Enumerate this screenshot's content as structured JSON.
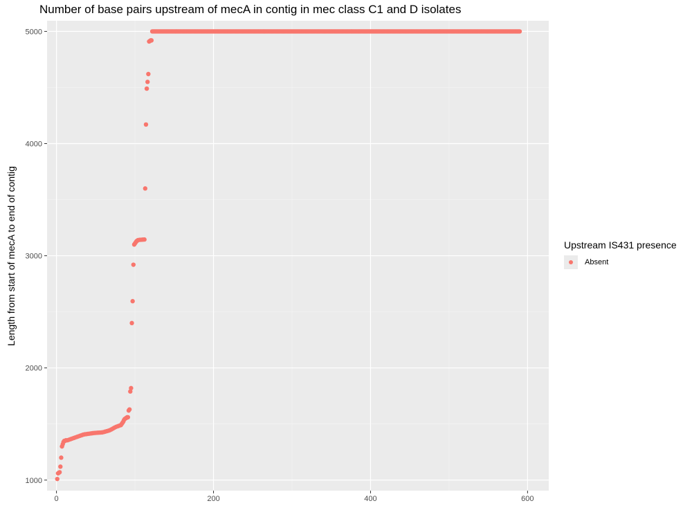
{
  "colors": {
    "series": "#f8766d",
    "panel": "#ebebeb",
    "grid_major": "#ffffff",
    "grid_minor": "#f5f5f5"
  },
  "chart_data": {
    "type": "scatter",
    "title": "Number of base pairs upstream of mecA in contig in mec class C1 and D isolates",
    "xlabel": "",
    "ylabel": "Length from start of mecA to end of contig",
    "xlim": [
      -12,
      627
    ],
    "ylim": [
      906,
      5095
    ],
    "xticks": [
      0,
      200,
      400,
      600
    ],
    "yticks": [
      1000,
      2000,
      3000,
      4000,
      5000
    ],
    "grid": true,
    "legend": {
      "title": "Upstream IS431 presence",
      "position": "right",
      "entries": [
        "Absent"
      ]
    },
    "series": [
      {
        "name": "Absent",
        "points": [
          [
            1,
            1010
          ],
          [
            2,
            1060
          ],
          [
            3,
            1065
          ],
          [
            4,
            1070
          ],
          [
            5,
            1120
          ],
          [
            6,
            1200
          ],
          [
            7,
            1300
          ],
          [
            8,
            1320
          ],
          [
            9,
            1340
          ],
          [
            10,
            1350
          ],
          [
            11,
            1350
          ],
          [
            12,
            1355
          ],
          [
            14,
            1355
          ],
          [
            16,
            1360
          ],
          [
            18,
            1365
          ],
          [
            20,
            1370
          ],
          [
            22,
            1375
          ],
          [
            24,
            1380
          ],
          [
            26,
            1385
          ],
          [
            28,
            1390
          ],
          [
            30,
            1395
          ],
          [
            32,
            1400
          ],
          [
            34,
            1405
          ],
          [
            36,
            1408
          ],
          [
            38,
            1410
          ],
          [
            40,
            1412
          ],
          [
            42,
            1414
          ],
          [
            44,
            1416
          ],
          [
            46,
            1418
          ],
          [
            48,
            1420
          ],
          [
            50,
            1421
          ],
          [
            52,
            1422
          ],
          [
            54,
            1423
          ],
          [
            56,
            1424
          ],
          [
            58,
            1425
          ],
          [
            60,
            1428
          ],
          [
            62,
            1432
          ],
          [
            64,
            1436
          ],
          [
            66,
            1440
          ],
          [
            68,
            1445
          ],
          [
            70,
            1452
          ],
          [
            72,
            1460
          ],
          [
            74,
            1468
          ],
          [
            76,
            1475
          ],
          [
            78,
            1480
          ],
          [
            80,
            1485
          ],
          [
            82,
            1490
          ],
          [
            83,
            1500
          ],
          [
            84,
            1510
          ],
          [
            85,
            1520
          ],
          [
            86,
            1535
          ],
          [
            87,
            1545
          ],
          [
            88,
            1550
          ],
          [
            89,
            1555
          ],
          [
            90,
            1560
          ],
          [
            91,
            1560
          ],
          [
            92,
            1620
          ],
          [
            93,
            1630
          ],
          [
            94,
            1790
          ],
          [
            95,
            1820
          ],
          [
            96,
            2400
          ],
          [
            97,
            2595
          ],
          [
            98,
            2920
          ],
          [
            99,
            3100
          ],
          [
            100,
            3110
          ],
          [
            101,
            3120
          ],
          [
            102,
            3130
          ],
          [
            103,
            3135
          ],
          [
            104,
            3140
          ],
          [
            106,
            3142
          ],
          [
            108,
            3143
          ],
          [
            110,
            3144
          ],
          [
            112,
            3145
          ],
          [
            113,
            3600
          ],
          [
            114,
            4170
          ],
          [
            115,
            4490
          ],
          [
            116,
            4550
          ],
          [
            117,
            4620
          ],
          [
            118,
            4910
          ],
          [
            119,
            4915
          ],
          [
            120,
            4920
          ],
          [
            121,
            4920
          ]
        ],
        "plateau": {
          "x_start": 122,
          "x_end": 590,
          "y": 5000
        }
      }
    ]
  }
}
